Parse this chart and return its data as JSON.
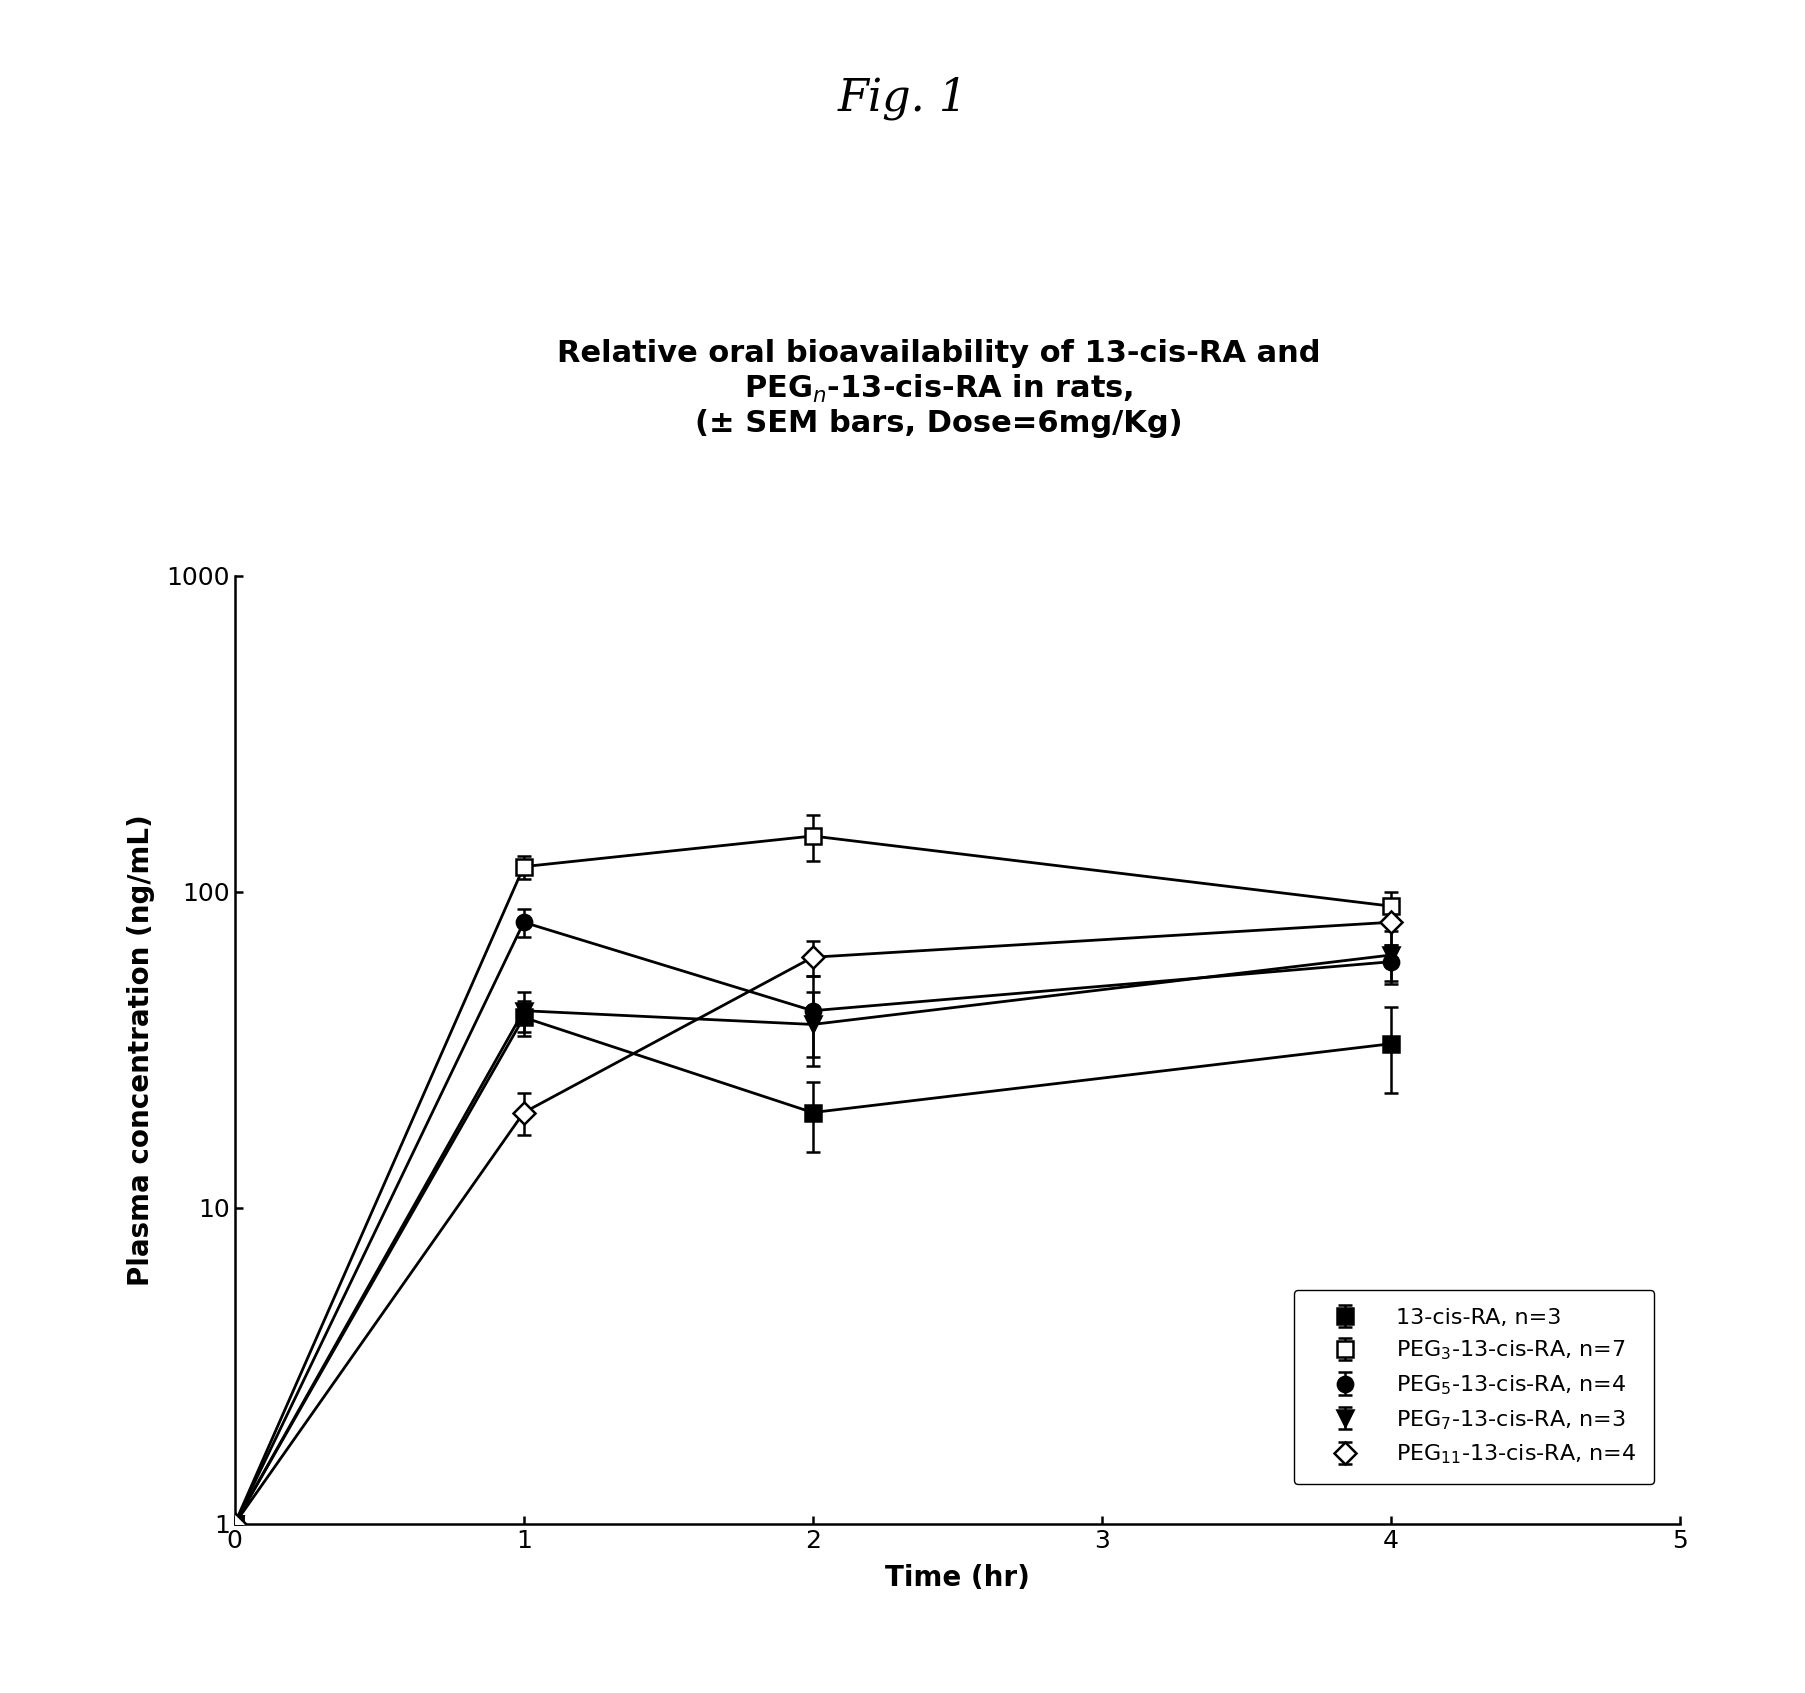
{
  "fig_label": "Fig. 1",
  "title_line1": "Relative oral bioavailability of 13-cis-RA and",
  "title_line2": "PEG$_n$-13-cis-RA in rats,",
  "title_line3": "(± SEM bars, Dose=6mg/Kg)",
  "xlabel": "Time (hr)",
  "ylabel": "Plasma concentration (ng/mL)",
  "xlim": [
    0,
    5
  ],
  "ylim_log": [
    1,
    1000
  ],
  "xticks": [
    0,
    1,
    2,
    3,
    4,
    5
  ],
  "series": [
    {
      "label": "13-cis-RA, n=3",
      "x": [
        0,
        1,
        2,
        4
      ],
      "y": [
        1.0,
        40,
        20,
        33
      ],
      "yerr": [
        0,
        5,
        5,
        10
      ],
      "marker": "s",
      "marker_fill": "black",
      "marker_edge": "black",
      "linestyle": "-",
      "color": "black"
    },
    {
      "label": "PEG$_3$-13-cis-RA, n=7",
      "x": [
        0,
        1,
        2,
        4
      ],
      "y": [
        1.0,
        120,
        150,
        90
      ],
      "yerr": [
        0,
        10,
        25,
        10
      ],
      "marker": "s",
      "marker_fill": "white",
      "marker_edge": "black",
      "linestyle": "-",
      "color": "black"
    },
    {
      "label": "PEG$_5$-13-cis-RA, n=4",
      "x": [
        0,
        1,
        2,
        4
      ],
      "y": [
        1.0,
        80,
        42,
        60
      ],
      "yerr": [
        0,
        8,
        12,
        8
      ],
      "marker": "o",
      "marker_fill": "black",
      "marker_edge": "black",
      "linestyle": "-",
      "color": "black"
    },
    {
      "label": "PEG$_7$-13-cis-RA, n=3",
      "x": [
        0,
        1,
        2,
        4
      ],
      "y": [
        1.0,
        42,
        38,
        63
      ],
      "yerr": [
        0,
        6,
        10,
        12
      ],
      "marker": "v",
      "marker_fill": "black",
      "marker_edge": "black",
      "linestyle": "-",
      "color": "black"
    },
    {
      "label": "PEG$_{11}$-13-cis-RA, n=4",
      "x": [
        0,
        1,
        2,
        4
      ],
      "y": [
        1.0,
        20,
        62,
        80
      ],
      "yerr": [
        0,
        3,
        8,
        12
      ],
      "marker": "D",
      "marker_fill": "white",
      "marker_edge": "black",
      "linestyle": "-",
      "color": "black"
    }
  ],
  "background_color": "#ffffff",
  "fig_label_fontsize": 32,
  "title_fontsize": 22,
  "axis_label_fontsize": 20,
  "tick_fontsize": 18,
  "legend_fontsize": 16,
  "marker_size": 11,
  "linewidth": 2.0
}
